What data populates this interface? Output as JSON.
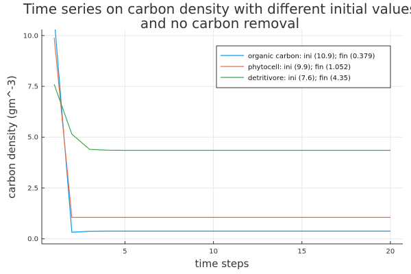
{
  "chart_data": {
    "type": "line",
    "title": [
      "Time series on carbon density with different initial values",
      "and no carbon removal"
    ],
    "xlabel": "time steps",
    "ylabel": "carbon density (gm^-3)",
    "xlim": [
      0.3,
      20.7
    ],
    "ylim": [
      -0.25,
      10.3
    ],
    "xticks": [
      5,
      10,
      15,
      20
    ],
    "xtick_labels": [
      "5",
      "10",
      "15",
      "20"
    ],
    "yticks": [
      0,
      2.5,
      5,
      7.5,
      10
    ],
    "ytick_labels": [
      "0.0",
      "2.5",
      "5.0",
      "7.5",
      "10.0"
    ],
    "grid": true,
    "legend_position": "top-right",
    "x": [
      1,
      2,
      3,
      4,
      5,
      6,
      7,
      8,
      9,
      10,
      11,
      12,
      13,
      14,
      15,
      16,
      17,
      18,
      19,
      20
    ],
    "series": [
      {
        "name": "organic carbon: ini (10.9); fin (0.379)",
        "color": "#009AFA",
        "values": [
          10.9,
          0.32,
          0.37,
          0.378,
          0.379,
          0.379,
          0.379,
          0.379,
          0.379,
          0.379,
          0.379,
          0.379,
          0.379,
          0.379,
          0.379,
          0.379,
          0.379,
          0.379,
          0.379,
          0.379
        ]
      },
      {
        "name": "phytocell: ini (9.9); fin (1.052)",
        "color": "#E36F47",
        "values": [
          9.9,
          1.052,
          1.052,
          1.052,
          1.052,
          1.052,
          1.052,
          1.052,
          1.052,
          1.052,
          1.052,
          1.052,
          1.052,
          1.052,
          1.052,
          1.052,
          1.052,
          1.052,
          1.052,
          1.052
        ]
      },
      {
        "name": "detritivore: ini (7.6); fin (4.35)",
        "color": "#3EA44E",
        "values": [
          7.6,
          5.15,
          4.4,
          4.36,
          4.35,
          4.35,
          4.35,
          4.35,
          4.35,
          4.35,
          4.35,
          4.35,
          4.35,
          4.35,
          4.35,
          4.35,
          4.35,
          4.35,
          4.35,
          4.35
        ]
      }
    ]
  }
}
